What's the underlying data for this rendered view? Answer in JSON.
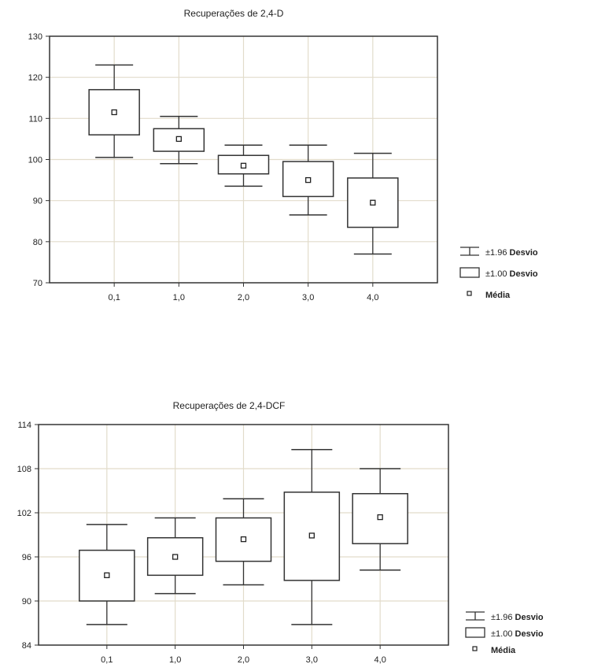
{
  "chart_data": [
    {
      "type": "box",
      "title": "Recuperações de 2,4-D",
      "xlabel": "",
      "ylabel": "",
      "categories": [
        "0,1",
        "1,0",
        "2,0",
        "3,0",
        "4,0"
      ],
      "ylim": [
        70,
        130
      ],
      "yticks": [
        70,
        80,
        90,
        100,
        110,
        120,
        130
      ],
      "ytick_labels": [
        "70",
        "80",
        "90",
        "100",
        "110",
        "120",
        "130"
      ],
      "grid": true,
      "mean": [
        111.5,
        105.0,
        98.5,
        95.0,
        89.5
      ],
      "box_low": [
        106.0,
        102.0,
        96.5,
        91.0,
        83.5
      ],
      "box_high": [
        117.0,
        107.5,
        101.0,
        99.5,
        95.5
      ],
      "whisker_low": [
        100.5,
        99.0,
        93.5,
        86.5,
        77.0
      ],
      "whisker_high": [
        123.0,
        110.5,
        103.5,
        103.5,
        101.5
      ],
      "legend": {
        "placement": "right",
        "entries": [
          {
            "symbol": "whisker",
            "prefix": "±1.96",
            "label": "Desvio"
          },
          {
            "symbol": "box",
            "prefix": "±1.00",
            "label": "Desvio"
          },
          {
            "symbol": "mean",
            "prefix": "",
            "label": "Média"
          }
        ]
      }
    },
    {
      "type": "box",
      "title": "Recuperações de 2,4-DCF",
      "xlabel": "",
      "ylabel": "",
      "categories": [
        "0,1",
        "1,0",
        "2,0",
        "3,0",
        "4,0"
      ],
      "ylim": [
        84,
        114
      ],
      "yticks": [
        84,
        90,
        96,
        102,
        108,
        114
      ],
      "ytick_labels": [
        "84",
        "90",
        "96",
        "102",
        "108",
        "114"
      ],
      "grid": true,
      "mean": [
        93.5,
        96.0,
        98.4,
        98.9,
        101.4
      ],
      "box_low": [
        90.0,
        93.5,
        95.4,
        92.8,
        97.8
      ],
      "box_high": [
        96.9,
        98.6,
        101.3,
        104.8,
        104.6
      ],
      "whisker_low": [
        86.8,
        91.0,
        92.2,
        86.8,
        94.2
      ],
      "whisker_high": [
        100.4,
        101.3,
        103.9,
        110.6,
        108.0
      ],
      "legend": {
        "placement": "right",
        "entries": [
          {
            "symbol": "whisker",
            "prefix": "±1.96",
            "label": "Desvio"
          },
          {
            "symbol": "box",
            "prefix": "±1.00",
            "label": "Desvio"
          },
          {
            "symbol": "mean",
            "prefix": "",
            "label": "Média"
          }
        ]
      }
    }
  ]
}
